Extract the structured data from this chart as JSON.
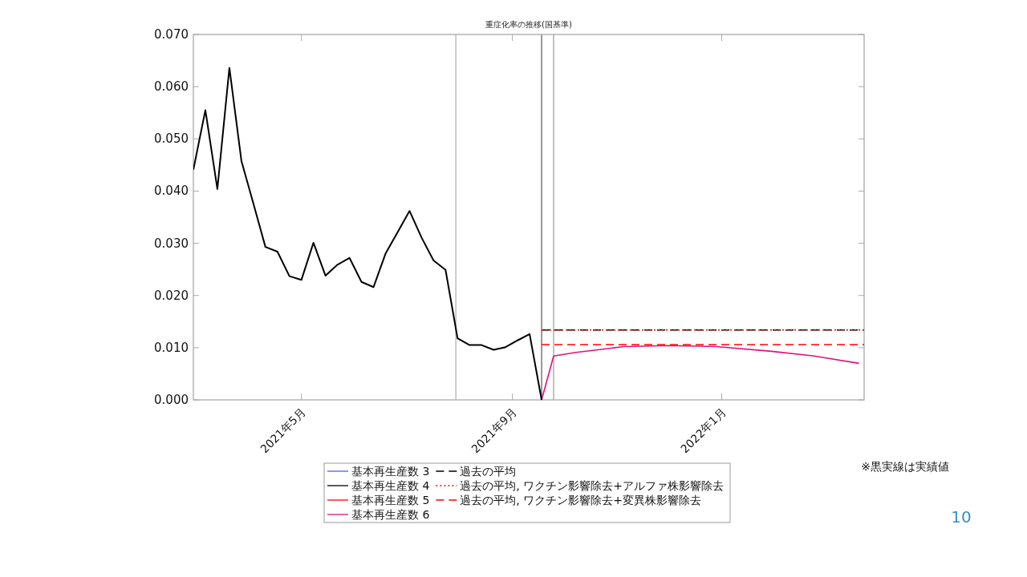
{
  "chart_data": {
    "type": "line",
    "title": "重症化率の推移(国基準)",
    "xlim": [
      "2021-02-27",
      "2022-03-25"
    ],
    "xticks": [
      {
        "value": "2021-05-01",
        "label": "2021年5月"
      },
      {
        "value": "2021-09-01",
        "label": "2021年9月"
      },
      {
        "value": "2022-01-01",
        "label": "2022年1月"
      }
    ],
    "ylim": [
      0,
      0.07
    ],
    "yticks": [
      {
        "value": 0,
        "label": "0.000"
      },
      {
        "value": 0.01,
        "label": "0.010"
      },
      {
        "value": 0.02,
        "label": "0.020"
      },
      {
        "value": 0.03,
        "label": "0.030"
      },
      {
        "value": 0.04,
        "label": "0.040"
      },
      {
        "value": 0.05,
        "label": "0.050"
      },
      {
        "value": 0.06,
        "label": "0.060"
      },
      {
        "value": 0.07,
        "label": "0.070"
      }
    ],
    "grid": false,
    "legend": "bottom",
    "marker": "none",
    "series": [
      {
        "name": "基本再生産数 3",
        "color": "#5555ff"
      },
      {
        "name": "基本再生産数 4",
        "color": "#000000"
      },
      {
        "name": "基本再生産数 5",
        "color": "#ff0000"
      },
      {
        "name": "基本再生産数 6",
        "color": "#e0107f",
        "x": [
          "2021-09-18",
          "2021-09-25",
          "2021-10-08",
          "2021-11-05",
          "2021-12-01",
          "2021-12-29",
          "2022-01-30",
          "2022-02-24",
          "2022-03-22"
        ],
        "values": [
          0,
          0.0084,
          0.0091,
          0.0102,
          0.0104,
          0.0102,
          0.0093,
          0.0084,
          0.007
        ]
      },
      {
        "name": "過去の平均",
        "color": "#000000",
        "line_style": "dashed",
        "x": [
          "2021-09-18",
          "2022-03-25"
        ],
        "values": [
          0.0134,
          0.0134
        ]
      },
      {
        "name": "過去の平均, ワクチン影響除去+アルファ株影響除去",
        "color": "#ff0000",
        "line_style": "dotted",
        "x": [
          "2021-09-18",
          "2022-03-25"
        ],
        "values": [
          0.0134,
          0.0134
        ]
      },
      {
        "name": "過去の平均, ワクチン影響除去+変異株影響除去",
        "color": "#ff0000",
        "line_style": "dashed",
        "x": [
          "2021-09-18",
          "2022-03-25"
        ],
        "values": [
          0.0106,
          0.0106
        ]
      },
      {
        "color": "#000000",
        "x": [
          "2021-02-27",
          "2021-03-06",
          "2021-03-13",
          "2021-03-20",
          "2021-03-27",
          "2021-04-03",
          "2021-04-10",
          "2021-04-17",
          "2021-04-24",
          "2021-05-01",
          "2021-05-08",
          "2021-05-15",
          "2021-05-22",
          "2021-05-29",
          "2021-06-05",
          "2021-06-12",
          "2021-06-19",
          "2021-06-26",
          "2021-07-03",
          "2021-07-10",
          "2021-07-17",
          "2021-07-24",
          "2021-07-31",
          "2021-08-07",
          "2021-08-14",
          "2021-08-21",
          "2021-08-28",
          "2021-09-04",
          "2021-09-11",
          "2021-09-18"
        ],
        "values": [
          0.0441,
          0.0555,
          0.0404,
          0.0636,
          0.0458,
          0.0376,
          0.0293,
          0.0284,
          0.0237,
          0.023,
          0.0301,
          0.0238,
          0.0259,
          0.0272,
          0.0226,
          0.0216,
          0.028,
          0.0321,
          0.0362,
          0.0311,
          0.0267,
          0.0249,
          0.0118,
          0.0105,
          0.0105,
          0.0096,
          0.0101,
          0.0114,
          0.0126,
          0
        ]
      }
    ],
    "ref_lines": [
      {
        "axis": "x",
        "value": "2021-07-30",
        "color": "#aaaaaa"
      },
      {
        "axis": "x",
        "value": "2021-09-18",
        "color": "#555555"
      },
      {
        "axis": "x",
        "value": "2021-09-25",
        "color": "#999999"
      }
    ],
    "annotations": [
      "※黒実線は実績値",
      "10"
    ]
  }
}
